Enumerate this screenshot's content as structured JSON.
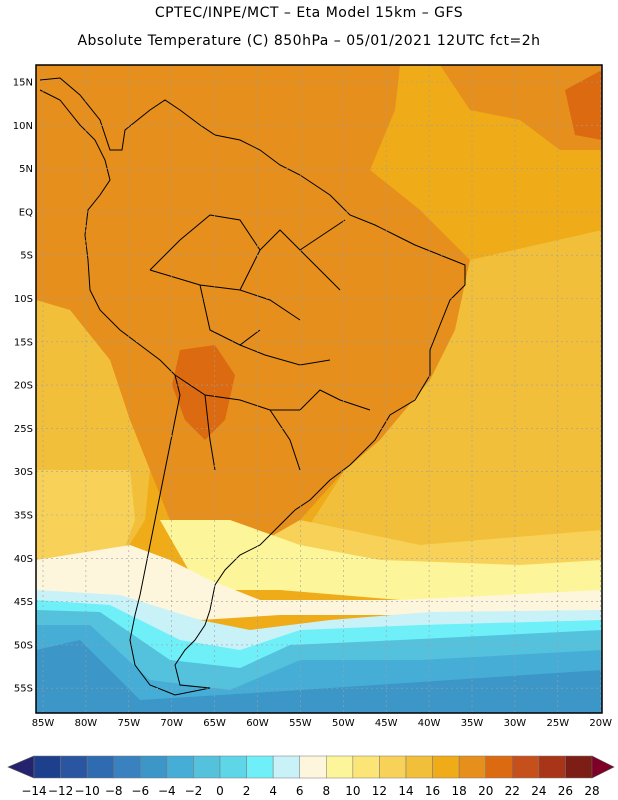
{
  "header": {
    "line1": "CPTEC/INPE/MCT –  Eta Model 15km – GFS",
    "line2": "Absolute Temperature (C) 850hPa – 05/01/2021 12UTC fct=2h"
  },
  "axes": {
    "lat_labels": [
      "15N",
      "10N",
      "5N",
      "EQ",
      "5S",
      "10S",
      "15S",
      "20S",
      "25S",
      "30S",
      "35S",
      "40S",
      "45S",
      "50S",
      "55S"
    ],
    "lon_labels": [
      "85W",
      "80W",
      "75W",
      "70W",
      "65W",
      "60W",
      "55W",
      "50W",
      "45W",
      "40W",
      "35W",
      "30W",
      "25W",
      "20W"
    ]
  },
  "colorbar": {
    "labels": [
      "-14",
      "-12",
      "-10",
      "-8",
      "-6",
      "-4",
      "-2",
      "0",
      "2",
      "4",
      "6",
      "8",
      "10",
      "12",
      "14",
      "16",
      "18",
      "20",
      "22",
      "24",
      "26",
      "28"
    ],
    "colors": [
      "#1e3f8c",
      "#2a55a0",
      "#2f6bb0",
      "#3a82bf",
      "#3d96c8",
      "#46aed6",
      "#55c2dd",
      "#5fd6e8",
      "#6ff0f8",
      "#c8f2f8",
      "#fdf6dc",
      "#fdf59a",
      "#fbe576",
      "#f8d258",
      "#f2bf3a",
      "#efab18",
      "#e68f1c",
      "#dc6a10",
      "#c6501b",
      "#a93518",
      "#7c1e16"
    ],
    "low_arrow": "#26236e",
    "high_arrow": "#7e0028"
  },
  "field_colors": {
    "ocean_north": "#efab18",
    "warm": "#e68f1c",
    "hot": "#dc6a10",
    "mild": "#f2bf3a",
    "cool": "#f8d258",
    "light": "#fdf59a",
    "cream": "#fdf6dc",
    "pale": "#c8f2f8",
    "cyan": "#6ff0f8",
    "aqua": "#55c2dd",
    "blue": "#46aed6",
    "deep": "#3d96c8",
    "coast_line": "#000000"
  }
}
